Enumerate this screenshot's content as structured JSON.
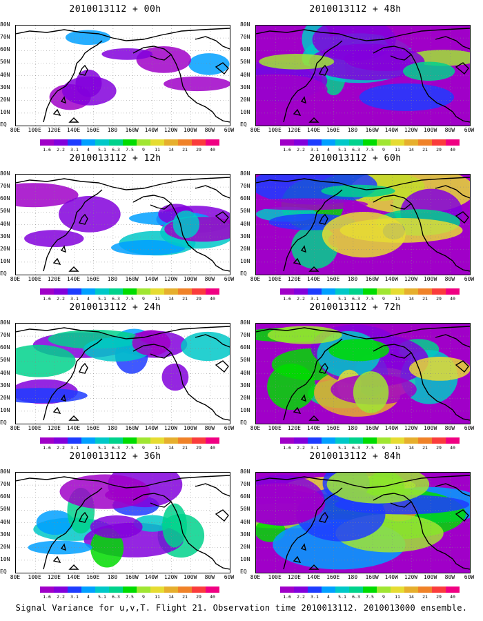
{
  "panels": [
    {
      "title": "2010013112 + 00h",
      "intensity": 0.15
    },
    {
      "title": "2010013112 + 48h",
      "intensity": 0.7
    },
    {
      "title": "2010013112 + 12h",
      "intensity": 0.35
    },
    {
      "title": "2010013112 + 60h",
      "intensity": 0.8
    },
    {
      "title": "2010013112 + 24h",
      "intensity": 0.45
    },
    {
      "title": "2010013112 + 72h",
      "intensity": 0.85
    },
    {
      "title": "2010013112 + 36h",
      "intensity": 0.55
    },
    {
      "title": "2010013112 + 84h",
      "intensity": 0.95
    }
  ],
  "lat_labels": [
    "80N",
    "70N",
    "60N",
    "50N",
    "40N",
    "30N",
    "20N",
    "10N",
    "EQ"
  ],
  "lon_labels": [
    "80E",
    "100E",
    "120E",
    "140E",
    "160E",
    "180",
    "160W",
    "140W",
    "120W",
    "100W",
    "80W",
    "60W"
  ],
  "colorbar": {
    "levels": [
      "1.6",
      "2.2",
      "3.1",
      "4",
      "5.1",
      "6.3",
      "7.5",
      "9",
      "11",
      "14",
      "21",
      "29",
      "40"
    ],
    "colors": [
      "#a000c8",
      "#8200dc",
      "#1e3cff",
      "#00a0ff",
      "#00c8c8",
      "#00d28c",
      "#00dc00",
      "#a0e632",
      "#e6dc32",
      "#e6af2d",
      "#f08228",
      "#fa3c3c",
      "#f00082"
    ]
  },
  "footer": "Signal Variance for u,v,T. Flight 21. Observation time 2010013112. 2010013000 ensemble."
}
